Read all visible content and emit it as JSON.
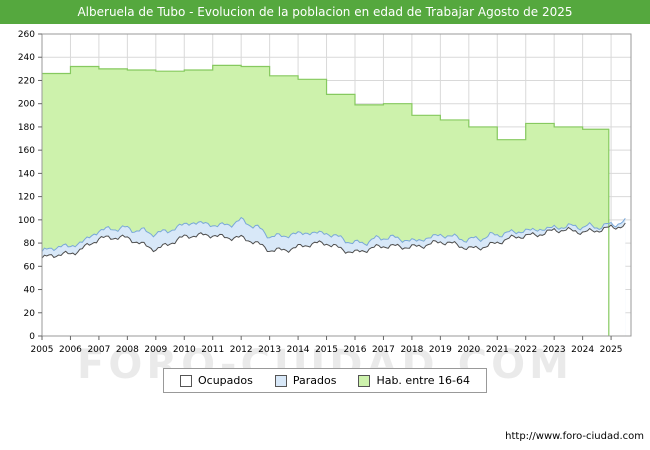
{
  "title": "Alberuela de Tubo - Evolucion de la poblacion en edad de Trabajar Agosto de 2025",
  "watermark": "FORO-CIUDAD.COM",
  "footer_url": "http://www.foro-ciudad.com",
  "title_bar_color": "#55a83e",
  "legend": {
    "items": [
      {
        "label": "Ocupados",
        "fill": "#ffffff",
        "stroke": "#4d4d4d"
      },
      {
        "label": "Parados",
        "fill": "#d8e8f8",
        "stroke": "#7aa8d8"
      },
      {
        "label": "Hab. entre 16-64",
        "fill": "#cdf2ac",
        "stroke": "#86c95f"
      }
    ]
  },
  "chart_data": {
    "type": "area",
    "title": "Alberuela de Tubo - Evolucion de la poblacion en edad de Trabajar Agosto de 2025",
    "x_start": 2005,
    "x_end": 2025.7,
    "data_x_end": 2025.58,
    "ylim": [
      0,
      260
    ],
    "ytick_step": 20,
    "y_ticks": [
      0,
      20,
      40,
      60,
      80,
      100,
      120,
      140,
      160,
      180,
      200,
      220,
      240,
      260
    ],
    "x_ticks": [
      2005,
      2006,
      2007,
      2008,
      2009,
      2010,
      2011,
      2012,
      2013,
      2014,
      2015,
      2016,
      2017,
      2018,
      2019,
      2020,
      2021,
      2022,
      2023,
      2024,
      2025
    ],
    "grid": true,
    "grid_color": "#d9d9d9",
    "border_color": "#999999",
    "background": "#ffffff",
    "legend_position": "bottom",
    "series": [
      {
        "name": "Hab. entre 16-64",
        "render": "step-yearly",
        "year_start": 2005,
        "end_x": 2024.92,
        "fill": "#cdf2ac",
        "stroke": "#86c95f",
        "values": [
          226,
          232,
          230,
          229,
          228,
          229,
          233,
          232,
          224,
          221,
          208,
          199,
          200,
          190,
          186,
          180,
          169,
          183,
          180,
          178
        ]
      },
      {
        "name": "Parados",
        "render": "stacked-on-ocupados",
        "year_start": 2005,
        "fill": "#d8e8f8",
        "stroke": "#7aa8d8",
        "anchors": [
          5,
          7,
          6,
          9,
          13,
          11,
          9,
          14,
          13,
          11,
          9,
          8,
          7,
          6,
          5,
          8,
          7,
          4,
          3,
          4,
          3
        ]
      },
      {
        "name": "Ocupados",
        "render": "line-monthly",
        "year_start": 2005,
        "fill": "#ffffff",
        "stroke": "#4d4d4d",
        "anchors": [
          67,
          70,
          85,
          83,
          76,
          84,
          88,
          84,
          74,
          77,
          79,
          73,
          76,
          78,
          80,
          76,
          80,
          86,
          92,
          88,
          95
        ]
      }
    ]
  }
}
